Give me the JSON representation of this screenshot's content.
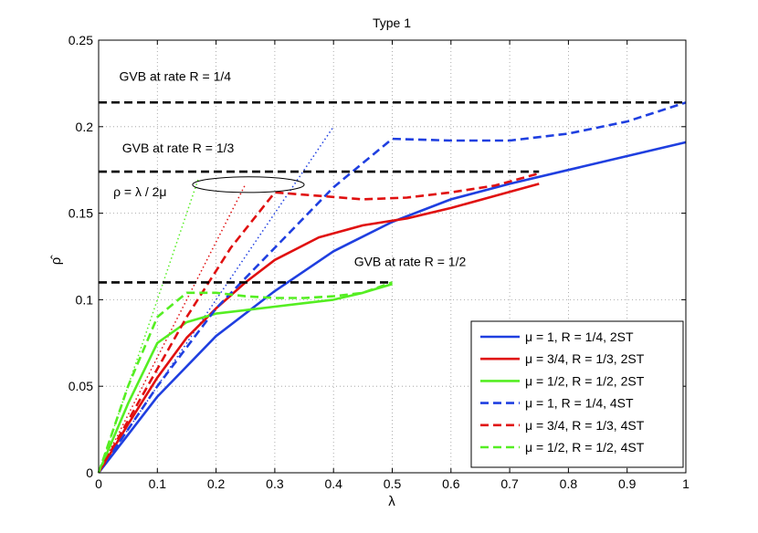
{
  "chart_data": {
    "type": "line",
    "title": "Type 1",
    "xlabel": "λ",
    "ylabel": "ρ̂",
    "xlim": [
      0,
      1
    ],
    "ylim": [
      0,
      0.25
    ],
    "xticks": [
      0,
      0.1,
      0.2,
      0.3,
      0.4,
      0.5,
      0.6,
      0.7,
      0.8,
      0.9,
      1
    ],
    "yticks": [
      0,
      0.05,
      0.1,
      0.15,
      0.2,
      0.25
    ],
    "xtick_labels": [
      "0",
      "0.1",
      "0.2",
      "0.3",
      "0.4",
      "0.5",
      "0.6",
      "0.7",
      "0.8",
      "0.9",
      "1"
    ],
    "ytick_labels": [
      "0",
      "0.05",
      "0.1",
      "0.15",
      "0.2",
      "0.25"
    ],
    "grid": true,
    "legend_position": "bottom-right",
    "series": [
      {
        "name": "μ = 1, R = 1/4, 2ST",
        "color": "#1f3fe0",
        "style": "solid",
        "x": [
          0,
          0.05,
          0.1,
          0.2,
          0.3,
          0.4,
          0.5,
          0.6,
          0.7,
          0.8,
          0.9,
          1.0
        ],
        "y": [
          0,
          0.022,
          0.044,
          0.079,
          0.105,
          0.128,
          0.145,
          0.158,
          0.167,
          0.175,
          0.183,
          0.191
        ]
      },
      {
        "name": "μ = 3/4, R = 1/3, 2ST",
        "color": "#e01010",
        "style": "solid",
        "x": [
          0,
          0.05,
          0.1,
          0.15,
          0.2,
          0.25,
          0.3,
          0.375,
          0.45,
          0.525,
          0.6,
          0.675,
          0.75
        ],
        "y": [
          0,
          0.028,
          0.055,
          0.078,
          0.095,
          0.11,
          0.123,
          0.136,
          0.143,
          0.147,
          0.153,
          0.16,
          0.167
        ]
      },
      {
        "name": "μ = 1/2, R = 1/2, 2ST",
        "color": "#55ee22",
        "style": "solid",
        "x": [
          0,
          0.05,
          0.1,
          0.15,
          0.2,
          0.25,
          0.3,
          0.35,
          0.4,
          0.45,
          0.5
        ],
        "y": [
          0,
          0.04,
          0.075,
          0.087,
          0.092,
          0.094,
          0.096,
          0.098,
          0.1,
          0.104,
          0.109
        ]
      },
      {
        "name": "μ = 1, R = 1/4, 4ST",
        "color": "#1f3fe0",
        "style": "dashed",
        "x": [
          0,
          0.1,
          0.2,
          0.3,
          0.4,
          0.5,
          0.6,
          0.7,
          0.8,
          0.9,
          1.0
        ],
        "y": [
          0,
          0.05,
          0.095,
          0.13,
          0.165,
          0.193,
          0.192,
          0.192,
          0.196,
          0.203,
          0.214
        ]
      },
      {
        "name": "μ = 3/4, R = 1/3, 4ST",
        "color": "#e01010",
        "style": "dashed",
        "x": [
          0,
          0.075,
          0.15,
          0.225,
          0.3,
          0.375,
          0.45,
          0.525,
          0.6,
          0.675,
          0.75
        ],
        "y": [
          0,
          0.045,
          0.09,
          0.13,
          0.162,
          0.16,
          0.158,
          0.159,
          0.162,
          0.166,
          0.173
        ]
      },
      {
        "name": "μ = 1/2, R = 1/2, 4ST",
        "color": "#55ee22",
        "style": "dashed",
        "x": [
          0,
          0.05,
          0.1,
          0.15,
          0.2,
          0.25,
          0.3,
          0.35,
          0.4,
          0.45,
          0.5
        ],
        "y": [
          0,
          0.05,
          0.09,
          0.104,
          0.104,
          0.102,
          0.101,
          0.101,
          0.102,
          0.104,
          0.11
        ]
      }
    ],
    "reference_lines": [
      {
        "label": "ρ = λ / 2μ, μ = 1",
        "color": "#1f3fe0",
        "style": "dotted",
        "x": [
          0,
          0.4
        ],
        "y": [
          0,
          0.2
        ]
      },
      {
        "label": "ρ = λ / 2μ, μ = 3/4",
        "color": "#e01010",
        "style": "dotted",
        "x": [
          0,
          0.25
        ],
        "y": [
          0,
          0.1667
        ]
      },
      {
        "label": "ρ = λ / 2μ, μ = 1/2",
        "color": "#55ee22",
        "style": "dotted",
        "x": [
          0,
          0.17
        ],
        "y": [
          0,
          0.17
        ]
      }
    ],
    "gvb_lines": [
      {
        "label": "GVB at rate R = 1/4",
        "y": 0.214,
        "x_end": 1.0,
        "label_x": 0.035,
        "label_y": 0.2265
      },
      {
        "label": "GVB at rate R = 1/3",
        "y": 0.174,
        "x_end": 0.75,
        "label_x": 0.04,
        "label_y": 0.185
      },
      {
        "label": "GVB at rate R = 1/2",
        "y": 0.11,
        "x_end": 0.5,
        "label_x": 0.435,
        "label_y": 0.1195
      }
    ],
    "annotations": [
      {
        "text": "ρ = λ / 2μ",
        "x": 0.025,
        "y": 0.1598
      }
    ],
    "ellipse": {
      "cx": 0.255,
      "cy": 0.1665,
      "rx": 0.095,
      "ry": 0.0045
    }
  }
}
